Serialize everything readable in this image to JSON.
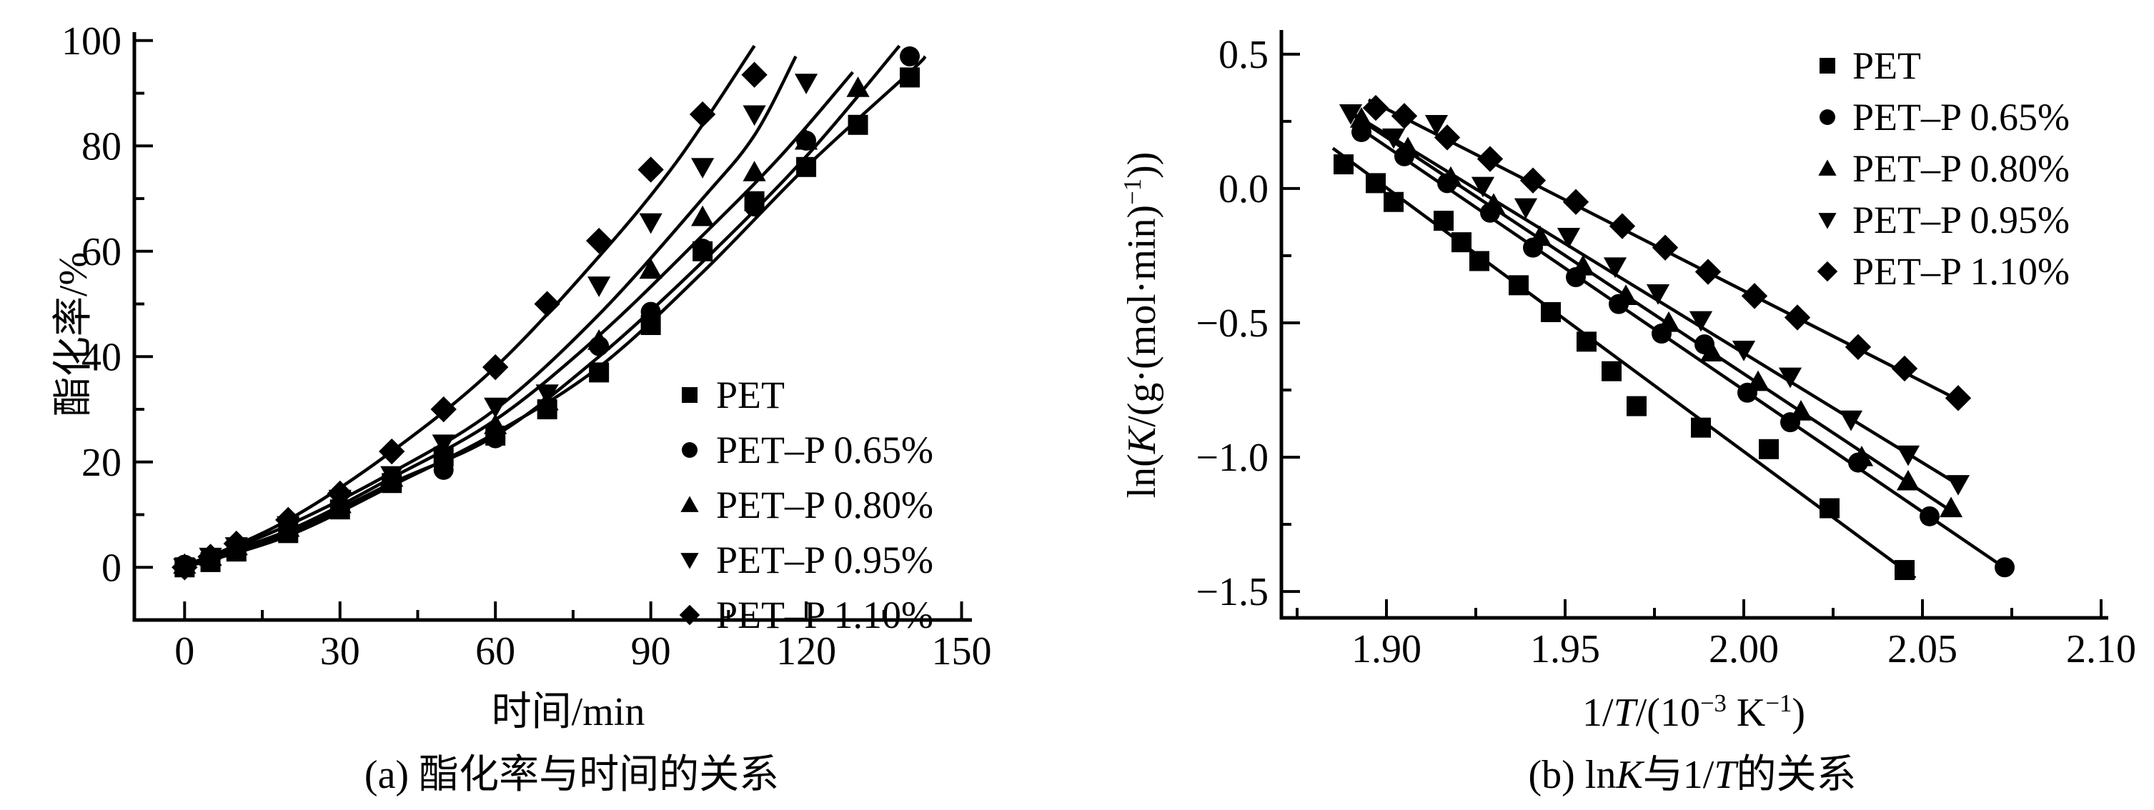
{
  "figure": {
    "background": "#ffffff",
    "ink": "#000000",
    "caption_a": "(a) 酯化率与时间的关系",
    "caption_b": "(b) lnK与1/T的关系"
  },
  "chart_data": [
    {
      "id": "a",
      "type": "scatter",
      "caption": "(a) 酯化率与时间的关系",
      "xlabel": "时间/min",
      "ylabel": "酯化率/%",
      "xlim": [
        0,
        150
      ],
      "ylim": [
        0,
        100
      ],
      "grid": false,
      "legend_position": "inside-lower-right",
      "x_ticks": [
        {
          "v": 0,
          "label": "0"
        },
        {
          "v": 30,
          "label": "30"
        },
        {
          "v": 60,
          "label": "60"
        },
        {
          "v": 90,
          "label": "90"
        },
        {
          "v": 120,
          "label": "120"
        },
        {
          "v": 150,
          "label": "150"
        }
      ],
      "x_minor_ticks": [
        15,
        45,
        75,
        105,
        135
      ],
      "y_ticks": [
        {
          "v": 0,
          "label": "0"
        },
        {
          "v": 20,
          "label": "20"
        },
        {
          "v": 40,
          "label": "40"
        },
        {
          "v": 60,
          "label": "60"
        },
        {
          "v": 80,
          "label": "80"
        },
        {
          "v": 100,
          "label": "100"
        }
      ],
      "y_minor_ticks": [
        10,
        30,
        50,
        70,
        90
      ],
      "series": [
        {
          "name": "PET",
          "marker": "square",
          "points": [
            [
              0,
              0
            ],
            [
              5,
              1
            ],
            [
              10,
              3
            ],
            [
              20,
              6.5
            ],
            [
              30,
              11
            ],
            [
              40,
              16
            ],
            [
              50,
              21
            ],
            [
              60,
              25
            ],
            [
              70,
              30
            ],
            [
              80,
              37
            ],
            [
              90,
              46
            ],
            [
              100,
              60
            ],
            [
              110,
              69.5
            ],
            [
              120,
              76
            ],
            [
              130,
              84
            ],
            [
              140,
              93
            ]
          ],
          "fit": [
            [
              0,
              0
            ],
            [
              20,
              6
            ],
            [
              40,
              15.5
            ],
            [
              60,
              25.5
            ],
            [
              80,
              38
            ],
            [
              100,
              56
            ],
            [
              120,
              76
            ],
            [
              140,
              94
            ],
            [
              143,
              97
            ]
          ]
        },
        {
          "name": "PET–P 0.65%",
          "marker": "circle",
          "points": [
            [
              0,
              0.5
            ],
            [
              5,
              1.5
            ],
            [
              10,
              3.5
            ],
            [
              20,
              7
            ],
            [
              30,
              11.5
            ],
            [
              40,
              16.5
            ],
            [
              50,
              18.5
            ],
            [
              60,
              24.5
            ],
            [
              70,
              30
            ],
            [
              80,
              42
            ],
            [
              90,
              48.5
            ],
            [
              100,
              60.5
            ],
            [
              110,
              68.5
            ],
            [
              120,
              81
            ],
            [
              140,
              97
            ]
          ],
          "fit": [
            [
              0,
              0.5
            ],
            [
              20,
              6.5
            ],
            [
              40,
              16
            ],
            [
              60,
              25
            ],
            [
              80,
              40
            ],
            [
              100,
              58
            ],
            [
              120,
              78
            ],
            [
              138,
              99
            ]
          ]
        },
        {
          "name": "PET–P 0.80%",
          "marker": "triangle-up",
          "points": [
            [
              0,
              0.5
            ],
            [
              5,
              2
            ],
            [
              10,
              4
            ],
            [
              20,
              7.5
            ],
            [
              30,
              12
            ],
            [
              40,
              17
            ],
            [
              50,
              22.5
            ],
            [
              60,
              27
            ],
            [
              70,
              31.5
            ],
            [
              80,
              43
            ],
            [
              90,
              56.5
            ],
            [
              100,
              66.5
            ],
            [
              110,
              75
            ],
            [
              120,
              81
            ],
            [
              130,
              91
            ]
          ],
          "fit": [
            [
              0,
              0.5
            ],
            [
              20,
              7
            ],
            [
              40,
              17
            ],
            [
              60,
              28
            ],
            [
              80,
              44
            ],
            [
              100,
              63
            ],
            [
              115,
              78
            ],
            [
              129,
              94
            ]
          ]
        },
        {
          "name": "PET–P 0.95%",
          "marker": "triangle-down",
          "points": [
            [
              0,
              0
            ],
            [
              5,
              2
            ],
            [
              10,
              4
            ],
            [
              20,
              8
            ],
            [
              30,
              13
            ],
            [
              40,
              17.5
            ],
            [
              50,
              23.5
            ],
            [
              60,
              30.5
            ],
            [
              70,
              33
            ],
            [
              80,
              53.5
            ],
            [
              90,
              65.5
            ],
            [
              100,
              76
            ],
            [
              110,
              86
            ],
            [
              120,
              92
            ]
          ],
          "fit": [
            [
              0,
              0
            ],
            [
              20,
              8
            ],
            [
              40,
              18
            ],
            [
              60,
              30
            ],
            [
              80,
              48
            ],
            [
              100,
              70
            ],
            [
              110,
              82
            ],
            [
              118,
              97
            ]
          ]
        },
        {
          "name": "PET–P 1.10%",
          "marker": "diamond",
          "points": [
            [
              0,
              0
            ],
            [
              5,
              2
            ],
            [
              10,
              4.5
            ],
            [
              20,
              9
            ],
            [
              30,
              14
            ],
            [
              40,
              22
            ],
            [
              50,
              30
            ],
            [
              60,
              38
            ],
            [
              70,
              50
            ],
            [
              80,
              62
            ],
            [
              90,
              75.5
            ],
            [
              100,
              86
            ],
            [
              110,
              93.5
            ]
          ],
          "fit": [
            [
              0,
              0
            ],
            [
              20,
              9
            ],
            [
              40,
              22
            ],
            [
              60,
              38
            ],
            [
              80,
              59
            ],
            [
              95,
              77
            ],
            [
              110,
              99
            ]
          ]
        }
      ]
    },
    {
      "id": "b",
      "type": "scatter",
      "caption": "(b) lnK与1/T的关系",
      "caption_segments": [
        {
          "t": "(b) ln"
        },
        {
          "t": "K",
          "i": true
        },
        {
          "t": "与1/"
        },
        {
          "t": "T",
          "i": true
        },
        {
          "t": "的关系"
        }
      ],
      "xlabel": "1/T/(10⁻³ K⁻¹)",
      "xlabel_segments": [
        {
          "t": "1/"
        },
        {
          "t": "T",
          "i": true
        },
        {
          "t": "/(10"
        },
        {
          "t": "−3",
          "sup": true
        },
        {
          "t": " K"
        },
        {
          "t": "−1",
          "sup": true
        },
        {
          "t": ")"
        }
      ],
      "ylabel": "ln(K/(g·(mol·min)⁻¹))",
      "ylabel_segments": [
        {
          "t": "ln("
        },
        {
          "t": "K",
          "i": true
        },
        {
          "t": "/(g·(mol·min)"
        },
        {
          "t": "−1",
          "sup": true
        },
        {
          "t": "))"
        }
      ],
      "xlim": [
        1.9,
        2.1
      ],
      "ylim": [
        -1.5,
        0.5
      ],
      "grid": false,
      "legend_position": "inside-upper-right",
      "x_ticks": [
        {
          "v": 1.9,
          "label": "1.90"
        },
        {
          "v": 1.95,
          "label": "1.95"
        },
        {
          "v": 2.0,
          "label": "2.00"
        },
        {
          "v": 2.05,
          "label": "2.05"
        },
        {
          "v": 2.1,
          "label": "2.10"
        }
      ],
      "x_minor_ticks": [
        1.875,
        1.925,
        1.975,
        2.025,
        2.075
      ],
      "y_ticks": [
        {
          "v": 0.5,
          "label": "0.5"
        },
        {
          "v": 0.0,
          "label": "0.0"
        },
        {
          "v": -0.5,
          "label": "−0.5"
        },
        {
          "v": -1.0,
          "label": "−1.0"
        },
        {
          "v": -1.5,
          "label": "−1.5"
        }
      ],
      "y_minor_ticks": [
        0.25,
        -0.25,
        -0.75,
        -1.25
      ],
      "series": [
        {
          "name": "PET",
          "marker": "square",
          "points": [
            [
              1.888,
              0.09
            ],
            [
              1.897,
              0.02
            ],
            [
              1.902,
              -0.05
            ],
            [
              1.916,
              -0.12
            ],
            [
              1.921,
              -0.2
            ],
            [
              1.926,
              -0.27
            ],
            [
              1.937,
              -0.36
            ],
            [
              1.946,
              -0.46
            ],
            [
              1.956,
              -0.57
            ],
            [
              1.963,
              -0.68
            ],
            [
              1.97,
              -0.81
            ],
            [
              1.988,
              -0.89
            ],
            [
              2.007,
              -0.97
            ],
            [
              2.024,
              -1.19
            ],
            [
              2.045,
              -1.42
            ]
          ],
          "fit": [
            [
              1.885,
              0.15
            ],
            [
              2.048,
              -1.45
            ]
          ]
        },
        {
          "name": "PET–P 0.65%",
          "marker": "circle",
          "points": [
            [
              1.893,
              0.21
            ],
            [
              1.905,
              0.12
            ],
            [
              1.917,
              0.02
            ],
            [
              1.929,
              -0.09
            ],
            [
              1.941,
              -0.22
            ],
            [
              1.953,
              -0.33
            ],
            [
              1.965,
              -0.43
            ],
            [
              1.977,
              -0.54
            ],
            [
              1.989,
              -0.58
            ],
            [
              2.001,
              -0.76
            ],
            [
              2.013,
              -0.87
            ],
            [
              2.032,
              -1.02
            ],
            [
              2.052,
              -1.22
            ],
            [
              2.073,
              -1.41
            ]
          ],
          "fit": [
            [
              1.893,
              0.22
            ],
            [
              2.075,
              -1.43
            ]
          ]
        },
        {
          "name": "PET–P 0.80%",
          "marker": "triangle-up",
          "points": [
            [
              1.893,
              0.26
            ],
            [
              1.906,
              0.15
            ],
            [
              1.918,
              0.04
            ],
            [
              1.93,
              -0.06
            ],
            [
              1.943,
              -0.18
            ],
            [
              1.955,
              -0.29
            ],
            [
              1.967,
              -0.4
            ],
            [
              1.979,
              -0.5
            ],
            [
              1.991,
              -0.61
            ],
            [
              2.004,
              -0.72
            ],
            [
              2.016,
              -0.83
            ],
            [
              2.033,
              -1.0
            ],
            [
              2.046,
              -1.09
            ],
            [
              2.058,
              -1.19
            ]
          ],
          "fit": [
            [
              1.891,
              0.27
            ],
            [
              2.058,
              -1.2
            ]
          ]
        },
        {
          "name": "PET–P 0.95%",
          "marker": "triangle-down",
          "points": [
            [
              1.89,
              0.28
            ],
            [
              1.902,
              0.19
            ],
            [
              1.914,
              0.24
            ],
            [
              1.927,
              0.01
            ],
            [
              1.939,
              -0.07
            ],
            [
              1.951,
              -0.18
            ],
            [
              1.964,
              -0.29
            ],
            [
              1.976,
              -0.39
            ],
            [
              1.988,
              -0.49
            ],
            [
              2.0,
              -0.6
            ],
            [
              2.013,
              -0.7
            ],
            [
              2.03,
              -0.86
            ],
            [
              2.046,
              -0.99
            ],
            [
              2.06,
              -1.1
            ]
          ],
          "fit": [
            [
              1.888,
              0.3
            ],
            [
              2.061,
              -1.11
            ]
          ]
        },
        {
          "name": "PET–P 1.10%",
          "marker": "diamond",
          "points": [
            [
              1.897,
              0.3
            ],
            [
              1.905,
              0.27
            ],
            [
              1.917,
              0.19
            ],
            [
              1.929,
              0.11
            ],
            [
              1.941,
              0.03
            ],
            [
              1.953,
              -0.05
            ],
            [
              1.966,
              -0.14
            ],
            [
              1.978,
              -0.22
            ],
            [
              1.99,
              -0.31
            ],
            [
              2.003,
              -0.4
            ],
            [
              2.015,
              -0.48
            ],
            [
              2.032,
              -0.59
            ],
            [
              2.045,
              -0.67
            ],
            [
              2.06,
              -0.78
            ]
          ],
          "fit": [
            [
              1.895,
              0.33
            ],
            [
              2.062,
              -0.8
            ]
          ]
        }
      ]
    }
  ]
}
